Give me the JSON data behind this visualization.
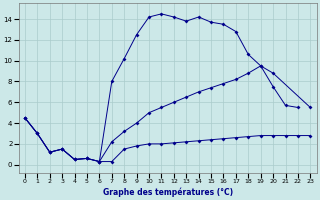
{
  "xlabel": "Graphe des températures (°C)",
  "xlim": [
    -0.5,
    23.5
  ],
  "ylim": [
    -0.8,
    15.5
  ],
  "xticks": [
    0,
    1,
    2,
    3,
    4,
    5,
    6,
    7,
    8,
    9,
    10,
    11,
    12,
    13,
    14,
    15,
    16,
    17,
    18,
    19,
    20,
    21,
    22,
    23
  ],
  "yticks": [
    0,
    2,
    4,
    6,
    8,
    10,
    12,
    14
  ],
  "bg_color": "#cce8e8",
  "grid_color": "#aacccc",
  "line_color": "#00008b",
  "line1_x": [
    0,
    1,
    2,
    3,
    4,
    5,
    6,
    7,
    8,
    9,
    10,
    11,
    12,
    13,
    14,
    15,
    16,
    17,
    18,
    19,
    20,
    21,
    22,
    23
  ],
  "line1_y": [
    4.5,
    3.0,
    1.2,
    1.5,
    0.5,
    0.6,
    0.3,
    8.0,
    10.2,
    12.5,
    14.2,
    14.5,
    14.2,
    13.8,
    14.2,
    13.7,
    13.5,
    12.8,
    10.6,
    9.5,
    7.5,
    5.7,
    5.5,
    null
  ],
  "line2_x": [
    0,
    1,
    2,
    3,
    4,
    5,
    6,
    7,
    8,
    9,
    10,
    11,
    12,
    13,
    14,
    15,
    16,
    17,
    18,
    19,
    20,
    21,
    22,
    23
  ],
  "line2_y": [
    4.5,
    3.0,
    1.2,
    1.5,
    0.5,
    0.6,
    0.3,
    2.2,
    3.2,
    4.0,
    5.0,
    5.5,
    6.0,
    6.5,
    7.0,
    7.4,
    7.8,
    8.2,
    8.8,
    9.5,
    8.8,
    null,
    null,
    5.5
  ],
  "line3_x": [
    0,
    1,
    2,
    3,
    4,
    5,
    6,
    7,
    8,
    9,
    10,
    11,
    12,
    13,
    14,
    15,
    16,
    17,
    18,
    19,
    20,
    21,
    22,
    23
  ],
  "line3_y": [
    4.5,
    3.0,
    1.2,
    1.5,
    0.5,
    0.6,
    0.3,
    0.3,
    1.5,
    1.8,
    2.0,
    2.0,
    2.1,
    2.2,
    2.3,
    2.4,
    2.5,
    2.6,
    2.7,
    2.8,
    2.8,
    2.8,
    2.8,
    2.8
  ]
}
